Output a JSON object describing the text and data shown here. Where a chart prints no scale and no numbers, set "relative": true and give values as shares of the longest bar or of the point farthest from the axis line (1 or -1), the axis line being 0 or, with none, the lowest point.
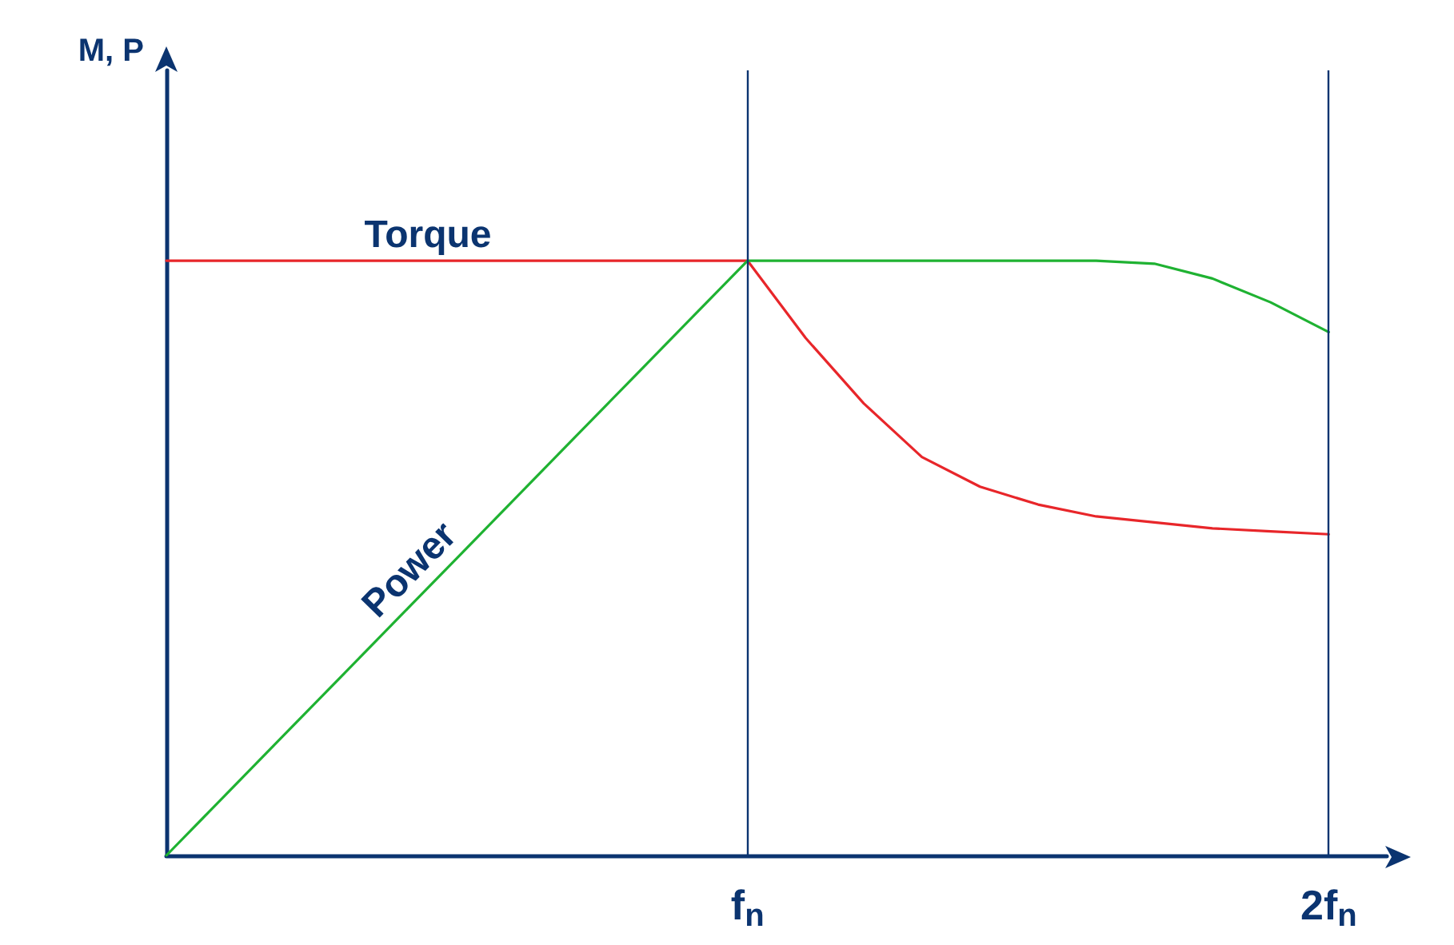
{
  "chart_data": {
    "type": "line",
    "relative": true,
    "annotations": [
      "M, P"
    ],
    "grid": false,
    "legend": false,
    "marker": "none",
    "line_style": "solid",
    "categories": [
      null,
      null,
      null,
      null,
      null,
      null,
      null,
      null,
      null,
      null,
      "f$_{n}$",
      null,
      null,
      null,
      null,
      null,
      null,
      null,
      null,
      null,
      "2f$_{n}$",
      null
    ],
    "series": [
      {
        "name": "Torque",
        "color": "#e8262a",
        "values": [
          1,
          1,
          1,
          1,
          1,
          1,
          1,
          1,
          1,
          1,
          1,
          0.87,
          0.76,
          0.67,
          0.62,
          0.59,
          0.57,
          0.56,
          0.55,
          0.545,
          0.54,
          null
        ]
      },
      {
        "name": "Power",
        "color": "#1fb232",
        "values": [
          0,
          0.1,
          0.2,
          0.3,
          0.4,
          0.5,
          0.6,
          0.7,
          0.8,
          0.9,
          1,
          1,
          1,
          1,
          1,
          1,
          1,
          0.995,
          0.97,
          0.93,
          0.88,
          null
        ]
      }
    ],
    "ref_lines": [
      {
        "axis": "x",
        "value": "f$_{n}$",
        "color": "#0b3470"
      },
      {
        "axis": "x",
        "value": "2f$_{n}$",
        "color": "#0b3470"
      }
    ]
  }
}
